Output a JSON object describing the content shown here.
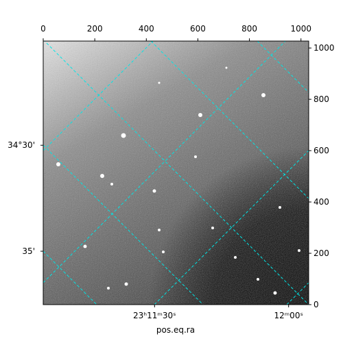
{
  "chart_data": {
    "type": "image",
    "xlabel": "pos.eq.ra",
    "xlim": [
      0,
      1030
    ],
    "ylim": [
      0,
      1027
    ],
    "xticks": [
      0,
      200,
      400,
      600,
      800,
      1000
    ],
    "yticks": [
      0,
      200,
      400,
      600,
      800,
      1000
    ],
    "world_xticks": [
      {
        "value": 432,
        "label": "23ʰ11ᵐ30ˢ"
      },
      {
        "value": 952,
        "label": "12ᵐ00ˢ"
      }
    ],
    "world_yticks": [
      {
        "value": 621,
        "label": "34°30'"
      },
      {
        "value": 208,
        "label": "35'"
      }
    ],
    "grid_color": "#00e5e5"
  }
}
